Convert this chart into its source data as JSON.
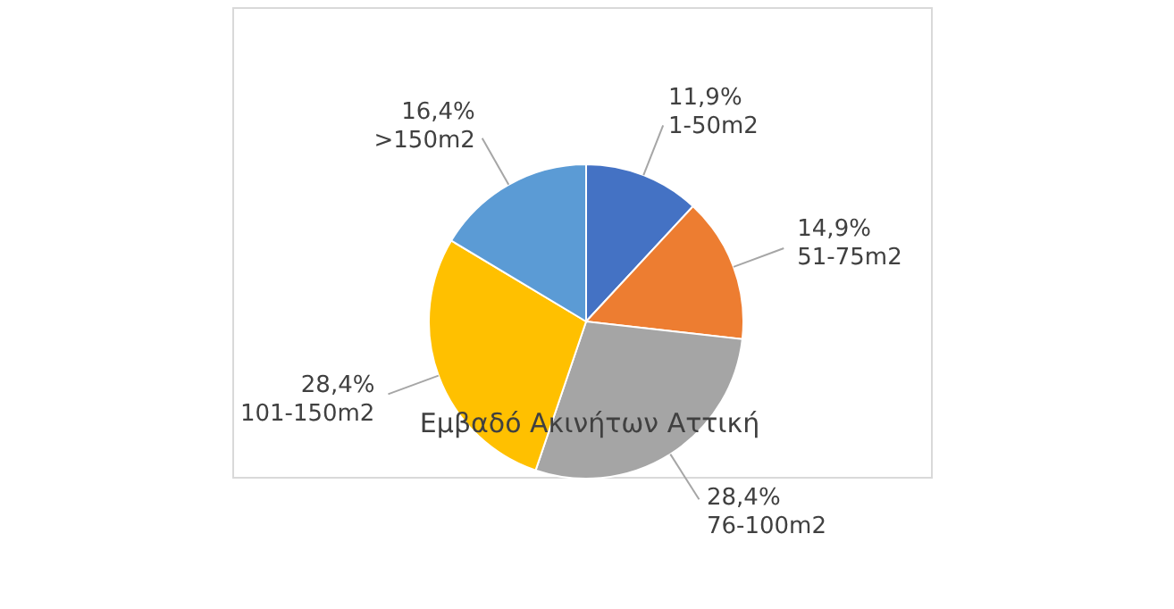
{
  "chart_data": {
    "type": "pie",
    "title": "Εμβαδό Ακινήτων Αττική",
    "categories": [
      "1-50m2",
      "51-75m2",
      "76-100m2",
      "101-150m2",
      ">150m2"
    ],
    "values": [
      11.9,
      14.9,
      28.4,
      28.4,
      16.4
    ],
    "value_labels": [
      "11,9%",
      "14,9%",
      "28,4%",
      "28,4%",
      "16,4%"
    ],
    "colors": [
      "#4472c4",
      "#ed7d31",
      "#a5a5a5",
      "#ffc000",
      "#5b9bd5"
    ]
  }
}
